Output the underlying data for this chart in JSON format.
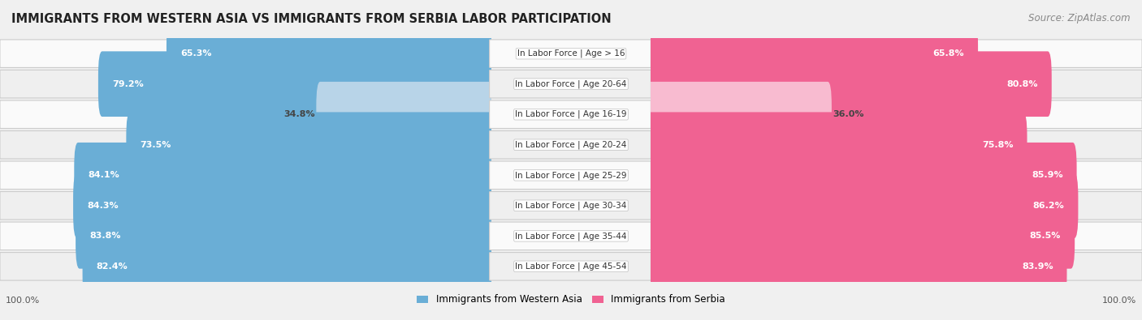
{
  "title": "IMMIGRANTS FROM WESTERN ASIA VS IMMIGRANTS FROM SERBIA LABOR PARTICIPATION",
  "source": "Source: ZipAtlas.com",
  "categories": [
    "In Labor Force | Age > 16",
    "In Labor Force | Age 20-64",
    "In Labor Force | Age 16-19",
    "In Labor Force | Age 20-24",
    "In Labor Force | Age 25-29",
    "In Labor Force | Age 30-34",
    "In Labor Force | Age 35-44",
    "In Labor Force | Age 45-54"
  ],
  "western_asia_values": [
    65.3,
    79.2,
    34.8,
    73.5,
    84.1,
    84.3,
    83.8,
    82.4
  ],
  "serbia_values": [
    65.8,
    80.8,
    36.0,
    75.8,
    85.9,
    86.2,
    85.5,
    83.9
  ],
  "western_asia_color": "#6aaed6",
  "western_asia_color_light": "#b8d4e8",
  "serbia_color": "#f06292",
  "serbia_color_light": "#f8bbd0",
  "background_color": "#f0f0f0",
  "row_colors": [
    "#fafafa",
    "#efefef"
  ],
  "max_value": 100.0,
  "legend_label_west": "Immigrants from Western Asia",
  "legend_label_serb": "Immigrants from Serbia",
  "label_font_size": 8.0,
  "value_font_size": 8.0,
  "title_font_size": 10.5,
  "source_font_size": 8.5
}
